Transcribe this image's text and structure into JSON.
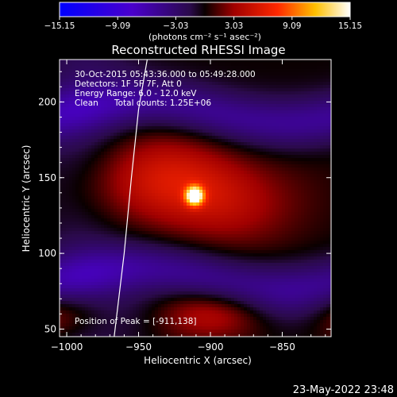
{
  "title": "Reconstructed RHESSI Image",
  "colorbar": {
    "ticks": [
      "-15.15",
      "-9.09",
      "-3.03",
      "3.03",
      "9.09",
      "15.15"
    ],
    "units": "(photons cm⁻² s⁻¹ asec⁻²)",
    "min": -15.15,
    "max": 15.15
  },
  "annotations": {
    "time_range": "30-Oct-2015 05:43:36.000 to 05:49:28.000",
    "detectors": "Detectors: 1F 5F 7F, Att 0",
    "energy_range": "Energy Range: 6.0 - 12.0 keV",
    "clean_label": "Clean",
    "total_counts": "Total counts: 1.25E+06",
    "peak_position": "Position of Peak = [-911,138]"
  },
  "footer_date": "23-May-2022 23:48",
  "chart_data": {
    "type": "heatmap",
    "xlabel": "Heliocentric X (arcsec)",
    "ylabel": "Heliocentric Y (arcsec)",
    "xlim": [
      -1005,
      -816
    ],
    "ylim": [
      45,
      228
    ],
    "x_ticks": [
      {
        "value": -1000,
        "label": "−1000"
      },
      {
        "value": -950,
        "label": "−950"
      },
      {
        "value": -900,
        "label": "−900"
      },
      {
        "value": -850,
        "label": "−850"
      }
    ],
    "y_ticks": [
      {
        "value": 50,
        "label": "50"
      },
      {
        "value": 100,
        "label": "100"
      },
      {
        "value": 150,
        "label": "150"
      },
      {
        "value": 200,
        "label": "200"
      }
    ],
    "peak": {
      "x": -911,
      "y": 138,
      "value": 15.15
    },
    "limb": {
      "x": [
        -967,
        -960,
        -955,
        -950,
        -944
      ],
      "y": [
        45,
        100,
        150,
        195,
        228
      ]
    }
  }
}
